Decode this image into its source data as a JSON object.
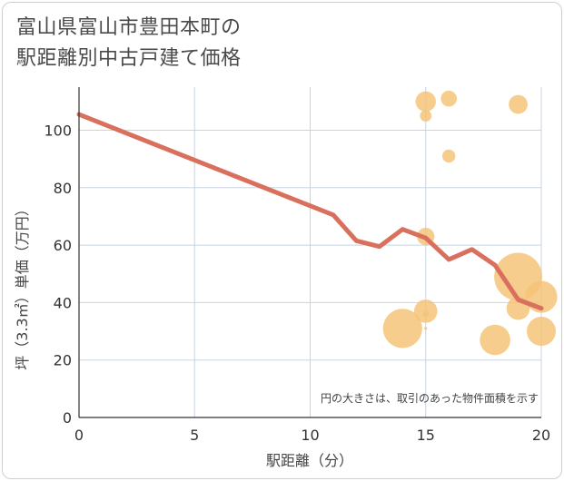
{
  "chart_data": {
    "type": "scatter",
    "title_lines": [
      "富山県富山市豊田本町の",
      "駅距離別中古戸建て価格"
    ],
    "xlabel": "駅距離（分）",
    "ylabel": "坪（3.3㎡）単価（万円）",
    "xlim": [
      0,
      20
    ],
    "ylim": [
      0,
      115
    ],
    "x_ticks": [
      0,
      5,
      10,
      15,
      20
    ],
    "y_ticks": [
      0,
      20,
      40,
      60,
      80,
      100
    ],
    "note": "円の大きさは、取引のあった物件面積を示す",
    "colors": {
      "bubble": "#f5c275",
      "line": "#d9705d",
      "grid": "#c8d4e0",
      "axis": "#333333"
    },
    "points": [
      {
        "x": 15.0,
        "y": 110.0,
        "size": 1.4
      },
      {
        "x": 16.0,
        "y": 111.0,
        "size": 1.1
      },
      {
        "x": 19.0,
        "y": 109.0,
        "size": 1.3
      },
      {
        "x": 15.0,
        "y": 105.0,
        "size": 0.8
      },
      {
        "x": 16.0,
        "y": 91.0,
        "size": 0.9
      },
      {
        "x": 15.0,
        "y": 63.0,
        "size": 1.2
      },
      {
        "x": 19.0,
        "y": 49.0,
        "size": 3.3
      },
      {
        "x": 20.0,
        "y": 42.0,
        "size": 2.2
      },
      {
        "x": 19.0,
        "y": 38.0,
        "size": 1.6
      },
      {
        "x": 15.0,
        "y": 37.0,
        "size": 1.6
      },
      {
        "x": 15.0,
        "y": 36.0,
        "size": 0.4
      },
      {
        "x": 14.0,
        "y": 31.0,
        "size": 2.7
      },
      {
        "x": 15.0,
        "y": 31.0,
        "size": 0.2
      },
      {
        "x": 18.0,
        "y": 27.0,
        "size": 2.1
      },
      {
        "x": 20.0,
        "y": 30.0,
        "size": 2.0
      }
    ],
    "series": [
      {
        "name": "average",
        "x": [
          0,
          11,
          12,
          13,
          14,
          15,
          16,
          17,
          18,
          19,
          20
        ],
        "y": [
          105.5,
          70.5,
          61.5,
          59.5,
          65.5,
          62.5,
          55.0,
          58.5,
          53.0,
          41.0,
          38.0
        ]
      }
    ]
  }
}
